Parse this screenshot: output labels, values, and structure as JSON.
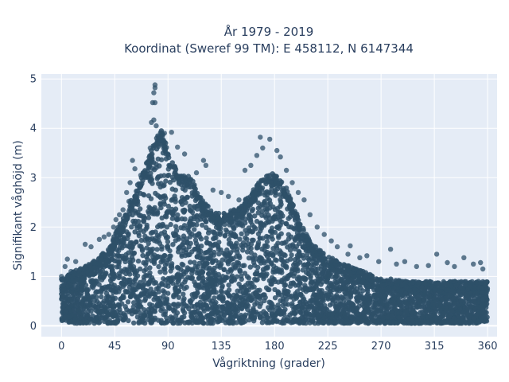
{
  "chart_data": {
    "type": "scatter",
    "title_line1": "År 1979 - 2019",
    "title_line2": "Koordinat (Sweref 99 TM): E 458112, N 6147344",
    "xlabel": "Vågriktning (grader)",
    "ylabel": "Signifikant våghöjd (m)",
    "xlim": [
      -17,
      368
    ],
    "ylim": [
      -0.22,
      5.1
    ],
    "xticks": [
      0,
      45,
      90,
      135,
      180,
      225,
      270,
      315,
      360
    ],
    "yticks": [
      0,
      1,
      2,
      3,
      4,
      5
    ],
    "grid": true,
    "plot_background": "#e5ecf6",
    "marker_color": "#2e5069",
    "envelope": {
      "x": [
        0,
        10,
        20,
        30,
        40,
        50,
        60,
        70,
        80,
        85,
        90,
        100,
        110,
        120,
        130,
        140,
        150,
        160,
        170,
        180,
        190,
        200,
        210,
        220,
        230,
        240,
        250,
        260,
        270,
        280,
        290,
        300,
        310,
        320,
        330,
        340,
        350,
        360
      ],
      "max": [
        0.95,
        1.1,
        1.2,
        1.35,
        1.6,
        2.1,
        2.6,
        3.2,
        3.8,
        4.0,
        3.5,
        3.1,
        3.0,
        2.5,
        2.3,
        2.3,
        2.4,
        2.7,
        3.0,
        3.1,
        2.8,
        2.2,
        1.7,
        1.5,
        1.35,
        1.25,
        1.15,
        1.05,
        0.95,
        0.95,
        0.9,
        0.9,
        0.9,
        0.9,
        0.9,
        0.9,
        0.9,
        0.9
      ],
      "min": [
        0.1,
        0.05,
        0.05,
        0.05,
        0.05,
        0.05,
        0.05,
        0.05,
        0.05,
        0.05,
        0.05,
        0.05,
        0.05,
        0.05,
        0.05,
        0.05,
        0.05,
        0.05,
        0.05,
        0.05,
        0.05,
        0.05,
        0.05,
        0.05,
        0.05,
        0.05,
        0.05,
        0.05,
        0.05,
        0.05,
        0.05,
        0.05,
        0.05,
        0.05,
        0.05,
        0.05,
        0.05,
        0.1
      ]
    },
    "outlier_points": [
      {
        "x": 79,
        "y": 4.88
      },
      {
        "x": 79,
        "y": 4.82
      },
      {
        "x": 78,
        "y": 4.72
      },
      {
        "x": 77,
        "y": 4.52
      },
      {
        "x": 79,
        "y": 4.52
      },
      {
        "x": 76,
        "y": 4.12
      },
      {
        "x": 78,
        "y": 4.17
      },
      {
        "x": 80,
        "y": 4.05
      },
      {
        "x": 87,
        "y": 3.9
      },
      {
        "x": 93,
        "y": 3.92
      },
      {
        "x": 75,
        "y": 3.6
      },
      {
        "x": 84,
        "y": 3.75
      },
      {
        "x": 98,
        "y": 3.62
      },
      {
        "x": 104,
        "y": 3.48
      },
      {
        "x": 60,
        "y": 3.35
      },
      {
        "x": 62,
        "y": 3.18
      },
      {
        "x": 67,
        "y": 3.05
      },
      {
        "x": 120,
        "y": 3.35
      },
      {
        "x": 122,
        "y": 3.25
      },
      {
        "x": 114,
        "y": 3.1
      },
      {
        "x": 58,
        "y": 2.9
      },
      {
        "x": 55,
        "y": 2.7
      },
      {
        "x": 57,
        "y": 2.52
      },
      {
        "x": 52,
        "y": 2.35
      },
      {
        "x": 49,
        "y": 2.25
      },
      {
        "x": 128,
        "y": 2.75
      },
      {
        "x": 135,
        "y": 2.7
      },
      {
        "x": 141,
        "y": 2.62
      },
      {
        "x": 150,
        "y": 2.55
      },
      {
        "x": 155,
        "y": 2.48
      },
      {
        "x": 168,
        "y": 3.82
      },
      {
        "x": 176,
        "y": 3.78
      },
      {
        "x": 165,
        "y": 3.45
      },
      {
        "x": 170,
        "y": 3.6
      },
      {
        "x": 160,
        "y": 3.25
      },
      {
        "x": 155,
        "y": 3.15
      },
      {
        "x": 185,
        "y": 3.42
      },
      {
        "x": 182,
        "y": 3.55
      },
      {
        "x": 190,
        "y": 3.15
      },
      {
        "x": 195,
        "y": 2.9
      },
      {
        "x": 200,
        "y": 2.7
      },
      {
        "x": 205,
        "y": 2.55
      },
      {
        "x": 210,
        "y": 2.25
      },
      {
        "x": 216,
        "y": 2.0
      },
      {
        "x": 222,
        "y": 1.85
      },
      {
        "x": 228,
        "y": 1.72
      },
      {
        "x": 233,
        "y": 1.6
      },
      {
        "x": 244,
        "y": 1.62
      },
      {
        "x": 242,
        "y": 1.45
      },
      {
        "x": 252,
        "y": 1.38
      },
      {
        "x": 258,
        "y": 1.42
      },
      {
        "x": 268,
        "y": 1.3
      },
      {
        "x": 278,
        "y": 1.55
      },
      {
        "x": 283,
        "y": 1.25
      },
      {
        "x": 290,
        "y": 1.3
      },
      {
        "x": 300,
        "y": 1.2
      },
      {
        "x": 310,
        "y": 1.22
      },
      {
        "x": 317,
        "y": 1.45
      },
      {
        "x": 326,
        "y": 1.28
      },
      {
        "x": 332,
        "y": 1.2
      },
      {
        "x": 340,
        "y": 1.38
      },
      {
        "x": 348,
        "y": 1.25
      },
      {
        "x": 354,
        "y": 1.28
      },
      {
        "x": 356,
        "y": 1.15
      },
      {
        "x": 5,
        "y": 1.35
      },
      {
        "x": 12,
        "y": 1.3
      },
      {
        "x": 20,
        "y": 1.65
      },
      {
        "x": 25,
        "y": 1.6
      },
      {
        "x": 32,
        "y": 1.75
      },
      {
        "x": 36,
        "y": 1.8
      },
      {
        "x": 40,
        "y": 1.85
      },
      {
        "x": 44,
        "y": 2.0
      },
      {
        "x": 46,
        "y": 2.15
      },
      {
        "x": 3,
        "y": 1.2
      },
      {
        "x": 8,
        "y": 1.1
      },
      {
        "x": 0,
        "y": 1.0
      }
    ]
  }
}
